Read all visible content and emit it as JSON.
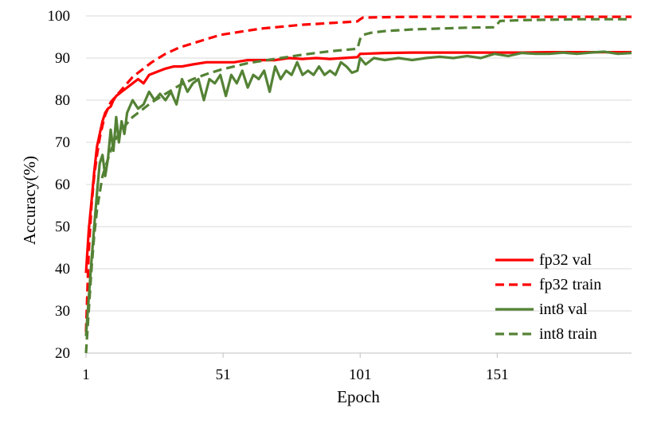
{
  "chart_data": {
    "type": "line",
    "title": "",
    "xlabel": "Epoch",
    "ylabel": "Accuracy(%)",
    "xlim": [
      1,
      200
    ],
    "ylim": [
      20,
      100
    ],
    "x_ticks": [
      1,
      51,
      101,
      151
    ],
    "y_ticks": [
      20,
      30,
      40,
      50,
      60,
      70,
      80,
      90,
      100
    ],
    "grid": true,
    "legend_position": "bottom-right",
    "series": [
      {
        "name": "fp32 val",
        "color": "#ff0000",
        "dash": "solid",
        "x": [
          1,
          2,
          3,
          4,
          5,
          6,
          7,
          8,
          9,
          10,
          11,
          12,
          14,
          16,
          18,
          20,
          22,
          24,
          26,
          28,
          30,
          33,
          36,
          40,
          45,
          50,
          55,
          60,
          65,
          70,
          75,
          80,
          85,
          90,
          95,
          100,
          101,
          102,
          110,
          120,
          130,
          140,
          150,
          160,
          170,
          180,
          190,
          200
        ],
        "y": [
          39,
          49,
          56,
          63,
          69,
          72,
          75,
          77,
          78,
          78.5,
          80,
          81,
          82,
          83,
          84,
          85,
          84,
          86,
          86.5,
          87,
          87.5,
          88,
          88,
          88.5,
          89,
          89,
          89,
          89.5,
          89.5,
          89.5,
          90,
          89.8,
          90,
          89.8,
          90,
          90.2,
          91,
          91,
          91.2,
          91.3,
          91.3,
          91.3,
          91.3,
          91.3,
          91.4,
          91.4,
          91.4,
          91.4
        ]
      },
      {
        "name": "fp32 train",
        "color": "#ff0000",
        "dash": "dashed",
        "x": [
          1,
          2,
          3,
          4,
          5,
          6,
          7,
          8,
          9,
          10,
          12,
          14,
          16,
          18,
          20,
          25,
          30,
          35,
          40,
          45,
          50,
          55,
          60,
          65,
          70,
          75,
          80,
          85,
          90,
          95,
          100,
          101,
          102,
          110,
          120,
          130,
          140,
          150,
          160,
          170,
          180,
          190,
          200
        ],
        "y": [
          25,
          44,
          55,
          62,
          67,
          71,
          74,
          76.5,
          78,
          79.5,
          81,
          82.5,
          84,
          85.5,
          86.5,
          89,
          91,
          92.5,
          93.5,
          94.5,
          95.5,
          96,
          96.5,
          97,
          97.3,
          97.6,
          97.9,
          98.1,
          98.3,
          98.5,
          98.7,
          99.2,
          99.6,
          99.7,
          99.8,
          99.8,
          99.8,
          99.8,
          99.8,
          99.8,
          99.8,
          99.8,
          99.8
        ]
      },
      {
        "name": "int8 val",
        "color": "#548235",
        "dash": "solid",
        "x": [
          1,
          2,
          3,
          4,
          5,
          6,
          7,
          8,
          9,
          10,
          11,
          12,
          13,
          14,
          15,
          16,
          18,
          20,
          22,
          24,
          26,
          28,
          30,
          32,
          34,
          36,
          38,
          40,
          42,
          44,
          46,
          48,
          50,
          52,
          54,
          56,
          58,
          60,
          62,
          64,
          66,
          68,
          70,
          72,
          74,
          76,
          78,
          80,
          82,
          84,
          86,
          88,
          90,
          92,
          94,
          96,
          98,
          100,
          101,
          103,
          106,
          110,
          115,
          120,
          125,
          130,
          135,
          140,
          145,
          150,
          155,
          160,
          165,
          170,
          175,
          180,
          185,
          190,
          195,
          200
        ],
        "y": [
          24,
          33,
          42,
          50,
          58,
          65,
          67,
          62,
          66,
          73,
          68,
          76,
          70,
          75,
          72,
          77,
          80,
          78,
          79,
          82,
          80,
          81.5,
          80,
          82,
          79,
          85,
          82,
          84,
          85,
          80,
          85,
          84,
          86,
          81,
          86,
          84,
          87,
          83,
          86,
          85,
          87,
          82,
          88,
          85,
          87,
          86,
          89,
          86,
          87,
          86,
          88,
          86,
          87,
          86,
          89,
          88,
          86.5,
          87,
          90,
          88.5,
          90,
          89.5,
          90,
          89.5,
          90,
          90.3,
          90,
          90.5,
          90,
          91,
          90.5,
          91.2,
          91,
          91,
          91.3,
          91,
          91.3,
          91.5,
          91,
          91.2
        ]
      },
      {
        "name": "int8 train",
        "color": "#548235",
        "dash": "dashed",
        "x": [
          1,
          2,
          3,
          4,
          5,
          6,
          7,
          8,
          9,
          10,
          12,
          14,
          16,
          18,
          20,
          25,
          30,
          35,
          40,
          45,
          50,
          55,
          60,
          65,
          70,
          75,
          80,
          85,
          90,
          95,
          100,
          101,
          102,
          105,
          110,
          120,
          130,
          140,
          150,
          151,
          152,
          160,
          170,
          180,
          190,
          200
        ],
        "y": [
          20,
          30,
          40,
          48,
          54,
          58,
          62,
          64,
          66,
          68,
          71,
          73,
          74.5,
          76,
          77,
          79.5,
          81.5,
          83.5,
          85,
          86.2,
          87.2,
          88,
          88.8,
          89.3,
          89.8,
          90.3,
          90.8,
          91.2,
          91.6,
          91.9,
          92.2,
          94.5,
          95.5,
          96,
          96.4,
          96.8,
          97,
          97.2,
          97.3,
          98,
          98.8,
          99,
          99.1,
          99.2,
          99.2,
          99.2
        ]
      }
    ]
  }
}
